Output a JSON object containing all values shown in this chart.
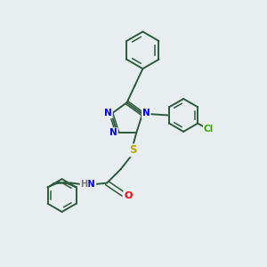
{
  "background_color": "#e8edf0",
  "bond_color": "#2d5a3d",
  "N_color": "#0000ee",
  "S_color": "#bbaa00",
  "O_color": "#ff0000",
  "Cl_color": "#33aa00",
  "H_color": "#777777",
  "figsize": [
    3.0,
    3.0
  ],
  "dpi": 100,
  "xlim": [
    0,
    10
  ],
  "ylim": [
    0,
    10
  ]
}
